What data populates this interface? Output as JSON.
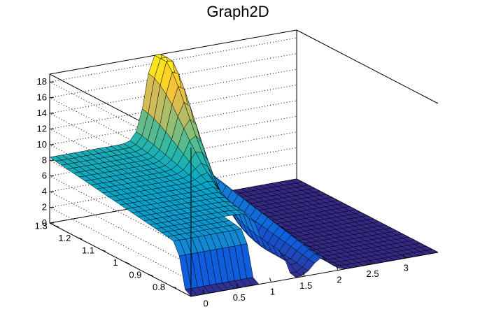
{
  "chart_data": {
    "type": "surface",
    "title": "Graph2D",
    "xlabel": "",
    "ylabel": "",
    "zlabel": "",
    "x_ticks": [
      "0",
      "0.5",
      "1",
      "1.5",
      "2",
      "2.5",
      "3"
    ],
    "y_ticks": [
      "0.8",
      "0.9",
      "1",
      "1.1",
      "1.2",
      "1.3"
    ],
    "z_ticks": [
      "0",
      "2",
      "4",
      "6",
      "8",
      "10",
      "12",
      "14",
      "16",
      "18"
    ],
    "xlim": [
      -0.2,
      3.5
    ],
    "ylim": [
      0.72,
      1.32
    ],
    "zlim": [
      0,
      19
    ],
    "grid": true,
    "colormap": [
      "#352a87",
      "#0f5cdd",
      "#1481d6",
      "#06a4ca",
      "#2eb7a4",
      "#87bf77",
      "#d1bb59",
      "#fec832",
      "#f9fb0e"
    ],
    "frame_color": "#000000",
    "surface_features": [
      {
        "region": "low-x plateau",
        "x_range": [
          -0.2,
          1.3
        ],
        "y_range": [
          0.72,
          1.32
        ],
        "z_approx": [
          5.5,
          8.5
        ]
      },
      {
        "region": "peak",
        "x_center": 1.45,
        "y_center": 1.25,
        "z_max": 19
      },
      {
        "region": "flat floor",
        "x_range": [
          1.8,
          3.5
        ],
        "z_approx": 0
      }
    ]
  }
}
